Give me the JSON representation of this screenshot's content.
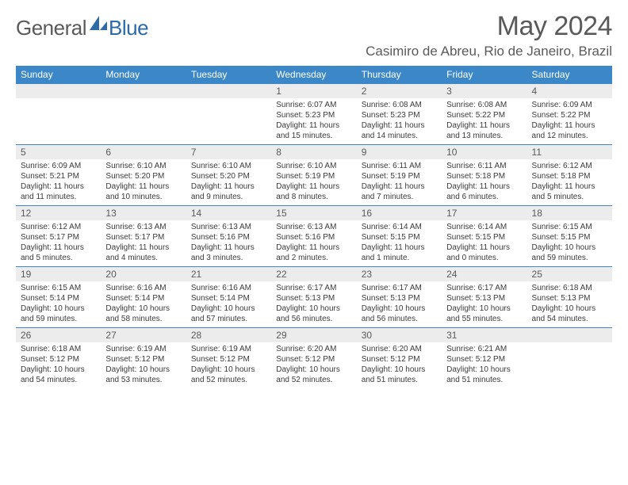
{
  "brand": {
    "general": "General",
    "blue": "Blue"
  },
  "title": "May 2024",
  "location": "Casimiro de Abreu, Rio de Janeiro, Brazil",
  "colors": {
    "header_bg": "#3b87c8",
    "daynum_bg": "#ececec",
    "text_muted": "#5a5a5a",
    "body_text": "#3a3a3a",
    "rule": "#3b87c8"
  },
  "weekdays": [
    "Sunday",
    "Monday",
    "Tuesday",
    "Wednesday",
    "Thursday",
    "Friday",
    "Saturday"
  ],
  "weeks": [
    [
      {
        "num": "",
        "sunrise": "",
        "sunset": "",
        "daylight": ""
      },
      {
        "num": "",
        "sunrise": "",
        "sunset": "",
        "daylight": ""
      },
      {
        "num": "",
        "sunrise": "",
        "sunset": "",
        "daylight": ""
      },
      {
        "num": "1",
        "sunrise": "Sunrise: 6:07 AM",
        "sunset": "Sunset: 5:23 PM",
        "daylight": "Daylight: 11 hours and 15 minutes."
      },
      {
        "num": "2",
        "sunrise": "Sunrise: 6:08 AM",
        "sunset": "Sunset: 5:23 PM",
        "daylight": "Daylight: 11 hours and 14 minutes."
      },
      {
        "num": "3",
        "sunrise": "Sunrise: 6:08 AM",
        "sunset": "Sunset: 5:22 PM",
        "daylight": "Daylight: 11 hours and 13 minutes."
      },
      {
        "num": "4",
        "sunrise": "Sunrise: 6:09 AM",
        "sunset": "Sunset: 5:22 PM",
        "daylight": "Daylight: 11 hours and 12 minutes."
      }
    ],
    [
      {
        "num": "5",
        "sunrise": "Sunrise: 6:09 AM",
        "sunset": "Sunset: 5:21 PM",
        "daylight": "Daylight: 11 hours and 11 minutes."
      },
      {
        "num": "6",
        "sunrise": "Sunrise: 6:10 AM",
        "sunset": "Sunset: 5:20 PM",
        "daylight": "Daylight: 11 hours and 10 minutes."
      },
      {
        "num": "7",
        "sunrise": "Sunrise: 6:10 AM",
        "sunset": "Sunset: 5:20 PM",
        "daylight": "Daylight: 11 hours and 9 minutes."
      },
      {
        "num": "8",
        "sunrise": "Sunrise: 6:10 AM",
        "sunset": "Sunset: 5:19 PM",
        "daylight": "Daylight: 11 hours and 8 minutes."
      },
      {
        "num": "9",
        "sunrise": "Sunrise: 6:11 AM",
        "sunset": "Sunset: 5:19 PM",
        "daylight": "Daylight: 11 hours and 7 minutes."
      },
      {
        "num": "10",
        "sunrise": "Sunrise: 6:11 AM",
        "sunset": "Sunset: 5:18 PM",
        "daylight": "Daylight: 11 hours and 6 minutes."
      },
      {
        "num": "11",
        "sunrise": "Sunrise: 6:12 AM",
        "sunset": "Sunset: 5:18 PM",
        "daylight": "Daylight: 11 hours and 5 minutes."
      }
    ],
    [
      {
        "num": "12",
        "sunrise": "Sunrise: 6:12 AM",
        "sunset": "Sunset: 5:17 PM",
        "daylight": "Daylight: 11 hours and 5 minutes."
      },
      {
        "num": "13",
        "sunrise": "Sunrise: 6:13 AM",
        "sunset": "Sunset: 5:17 PM",
        "daylight": "Daylight: 11 hours and 4 minutes."
      },
      {
        "num": "14",
        "sunrise": "Sunrise: 6:13 AM",
        "sunset": "Sunset: 5:16 PM",
        "daylight": "Daylight: 11 hours and 3 minutes."
      },
      {
        "num": "15",
        "sunrise": "Sunrise: 6:13 AM",
        "sunset": "Sunset: 5:16 PM",
        "daylight": "Daylight: 11 hours and 2 minutes."
      },
      {
        "num": "16",
        "sunrise": "Sunrise: 6:14 AM",
        "sunset": "Sunset: 5:15 PM",
        "daylight": "Daylight: 11 hours and 1 minute."
      },
      {
        "num": "17",
        "sunrise": "Sunrise: 6:14 AM",
        "sunset": "Sunset: 5:15 PM",
        "daylight": "Daylight: 11 hours and 0 minutes."
      },
      {
        "num": "18",
        "sunrise": "Sunrise: 6:15 AM",
        "sunset": "Sunset: 5:15 PM",
        "daylight": "Daylight: 10 hours and 59 minutes."
      }
    ],
    [
      {
        "num": "19",
        "sunrise": "Sunrise: 6:15 AM",
        "sunset": "Sunset: 5:14 PM",
        "daylight": "Daylight: 10 hours and 59 minutes."
      },
      {
        "num": "20",
        "sunrise": "Sunrise: 6:16 AM",
        "sunset": "Sunset: 5:14 PM",
        "daylight": "Daylight: 10 hours and 58 minutes."
      },
      {
        "num": "21",
        "sunrise": "Sunrise: 6:16 AM",
        "sunset": "Sunset: 5:14 PM",
        "daylight": "Daylight: 10 hours and 57 minutes."
      },
      {
        "num": "22",
        "sunrise": "Sunrise: 6:17 AM",
        "sunset": "Sunset: 5:13 PM",
        "daylight": "Daylight: 10 hours and 56 minutes."
      },
      {
        "num": "23",
        "sunrise": "Sunrise: 6:17 AM",
        "sunset": "Sunset: 5:13 PM",
        "daylight": "Daylight: 10 hours and 56 minutes."
      },
      {
        "num": "24",
        "sunrise": "Sunrise: 6:17 AM",
        "sunset": "Sunset: 5:13 PM",
        "daylight": "Daylight: 10 hours and 55 minutes."
      },
      {
        "num": "25",
        "sunrise": "Sunrise: 6:18 AM",
        "sunset": "Sunset: 5:13 PM",
        "daylight": "Daylight: 10 hours and 54 minutes."
      }
    ],
    [
      {
        "num": "26",
        "sunrise": "Sunrise: 6:18 AM",
        "sunset": "Sunset: 5:12 PM",
        "daylight": "Daylight: 10 hours and 54 minutes."
      },
      {
        "num": "27",
        "sunrise": "Sunrise: 6:19 AM",
        "sunset": "Sunset: 5:12 PM",
        "daylight": "Daylight: 10 hours and 53 minutes."
      },
      {
        "num": "28",
        "sunrise": "Sunrise: 6:19 AM",
        "sunset": "Sunset: 5:12 PM",
        "daylight": "Daylight: 10 hours and 52 minutes."
      },
      {
        "num": "29",
        "sunrise": "Sunrise: 6:20 AM",
        "sunset": "Sunset: 5:12 PM",
        "daylight": "Daylight: 10 hours and 52 minutes."
      },
      {
        "num": "30",
        "sunrise": "Sunrise: 6:20 AM",
        "sunset": "Sunset: 5:12 PM",
        "daylight": "Daylight: 10 hours and 51 minutes."
      },
      {
        "num": "31",
        "sunrise": "Sunrise: 6:21 AM",
        "sunset": "Sunset: 5:12 PM",
        "daylight": "Daylight: 10 hours and 51 minutes."
      },
      {
        "num": "",
        "sunrise": "",
        "sunset": "",
        "daylight": ""
      }
    ]
  ]
}
